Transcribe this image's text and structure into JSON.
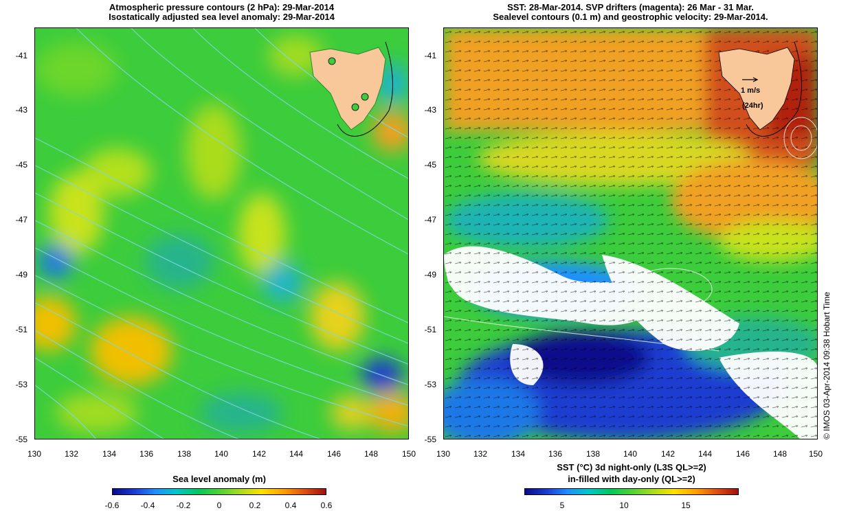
{
  "left": {
    "title1": "Atmospheric pressure contours (2 hPa): 29-Mar-2014",
    "title2": "Isostatically adjusted sea level anomaly: 29-Mar-2014",
    "yticks": [
      "-41",
      "-43",
      "-45",
      "-47",
      "-49",
      "-51",
      "-53",
      "-55"
    ],
    "xticks": [
      "130",
      "132",
      "134",
      "136",
      "138",
      "140",
      "142",
      "144",
      "146",
      "148",
      "150"
    ],
    "colorbar_label": "Sea level anomaly (m)",
    "colorbar_ticks": [
      "-0.6",
      "-0.4",
      "-0.2",
      "0",
      "0.2",
      "0.4",
      "0.6"
    ]
  },
  "right": {
    "title1": "SST: 28-Mar-2014. SVP drifters (magenta): 26 Mar - 31 Mar.",
    "title2": "Sealevel contours (0.1 m) and geostrophic velocity: 29-Mar-2014.",
    "yticks": [
      "-41",
      "-43",
      "-45",
      "-47",
      "-49",
      "-51",
      "-53",
      "-55"
    ],
    "xticks": [
      "130",
      "132",
      "134",
      "136",
      "138",
      "140",
      "142",
      "144",
      "146",
      "148",
      "150"
    ],
    "colorbar_label1": "SST (°C)  3d night-only (L3S QL>=2)",
    "colorbar_label2": "in-filled with day-only (QL>=2)",
    "colorbar_ticks": [
      "5",
      "10",
      "15"
    ],
    "scale_speed": "1 m/s",
    "scale_time": "(24hr)"
  },
  "credit": "© IMOS 03-Apr-2014 09:38 Hobart Time",
  "colors": {
    "land": "#f9c89a",
    "sla_mid": "#3ccc3c",
    "pressure_contour": "#7fd8e0",
    "sst_warm": "#f0a020",
    "cloud_mask": "#ffffff"
  }
}
